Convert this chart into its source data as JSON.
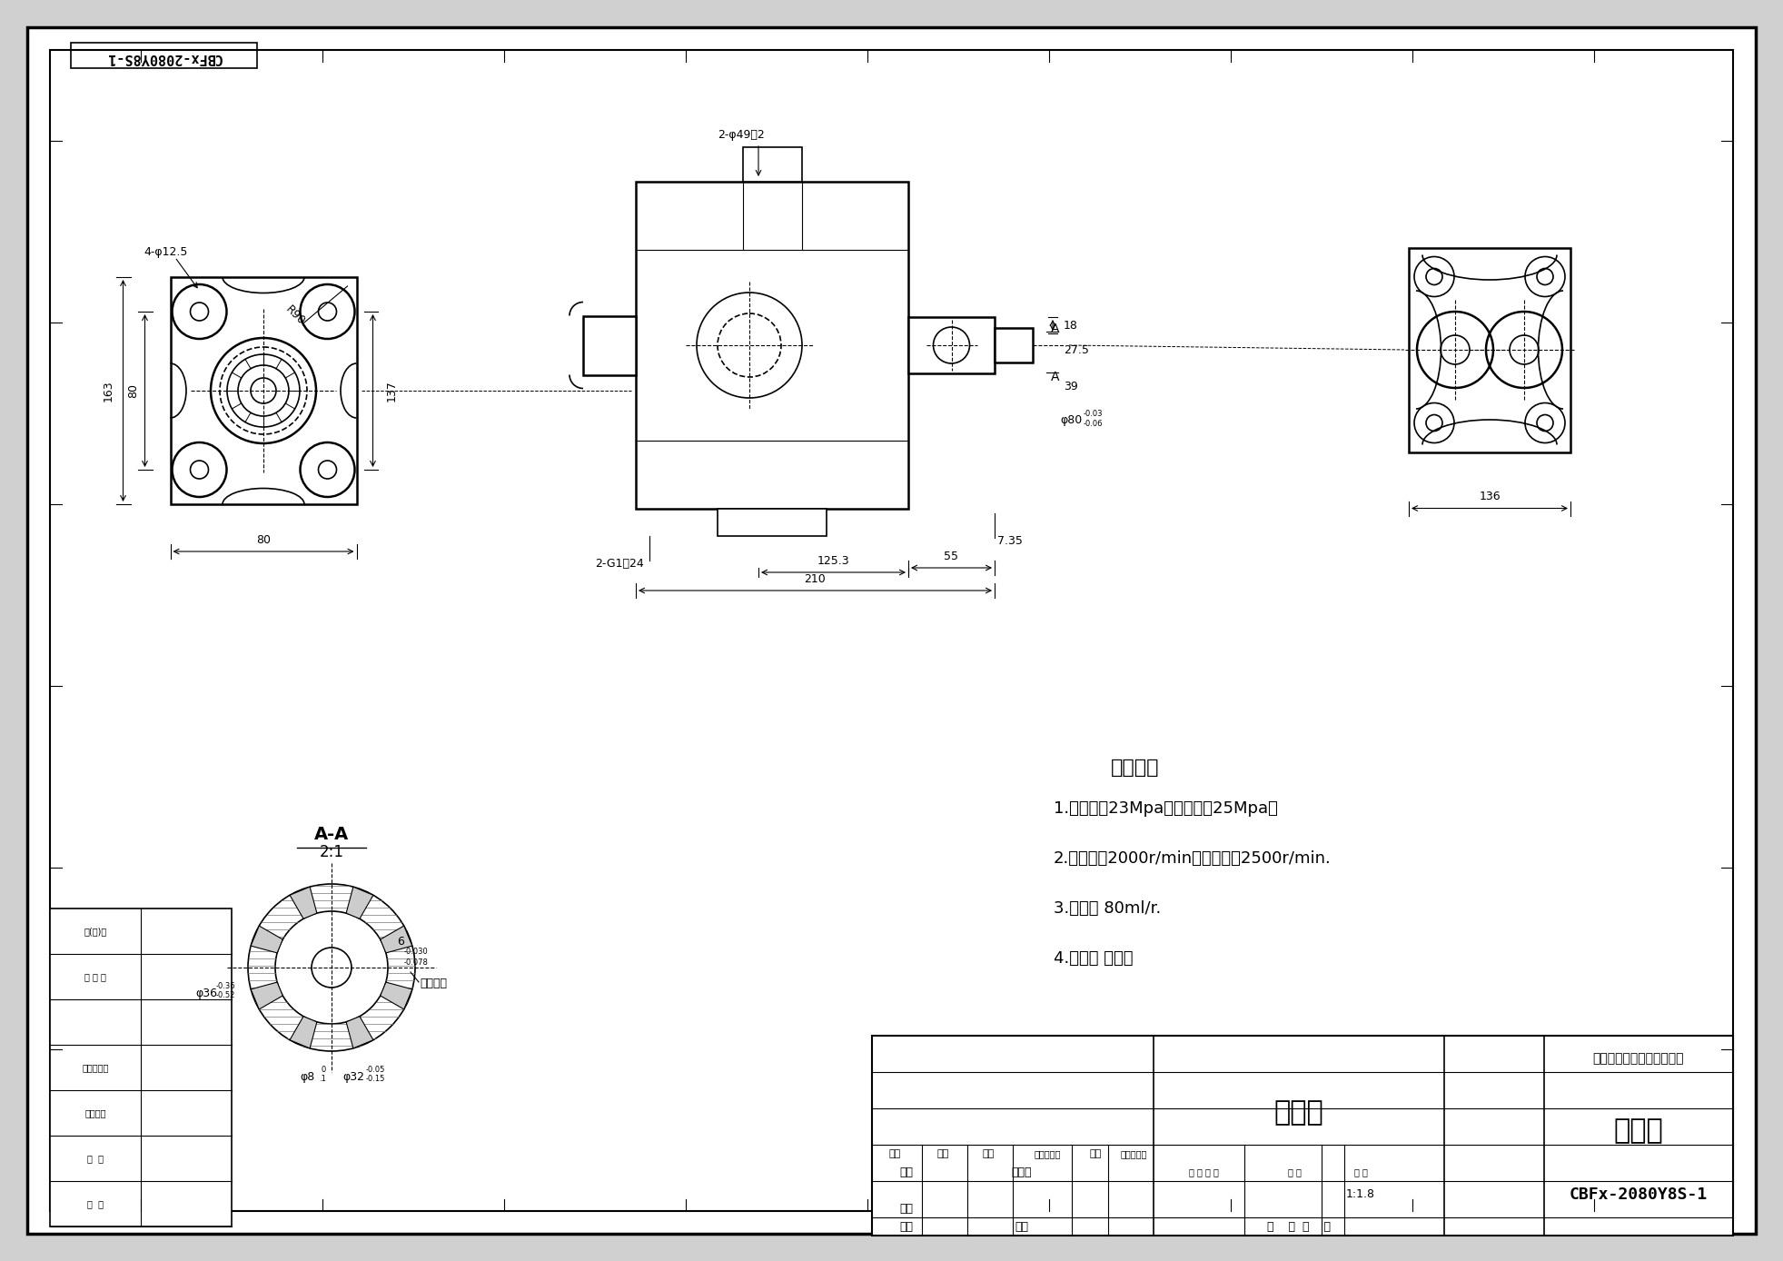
{
  "bg_color": "#d0d0d0",
  "drawing_bg": "#ffffff",
  "line_color": "#000000",
  "title": "CBFx-2080Y8S-1",
  "company": "河北华春液压汽配有限公司",
  "drawing_name": "外形图",
  "part_name": "齿轮泵",
  "scale": "1:1.8",
  "tech_title": "技术要求",
  "tech_reqs": [
    "1.额定压力23Mpa，最高压力25Mpa。",
    "2.额定转速2000r/min，最高转速2500r/min.",
    "3.排量： 80ml/r.",
    "4.旋向： 双旋向"
  ],
  "section_label": "A-A",
  "section_scale": "2:1",
  "part_number_rotated": "CBFx-2080Y8S-1"
}
